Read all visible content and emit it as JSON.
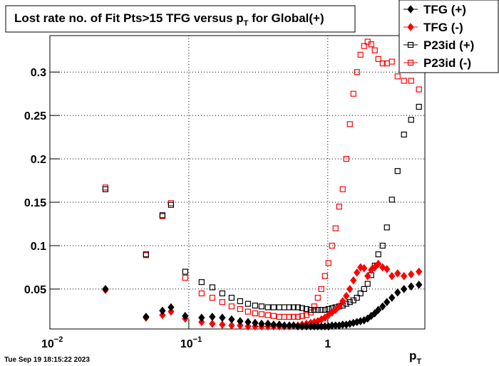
{
  "chart_data": {
    "type": "scatter",
    "title": {
      "main": "Lost rate no. of Fit Pts>15 TFG versus p",
      "sub": "T",
      "tail": " for Global(+)"
    },
    "x_label": {
      "main": "p",
      "sub": "T"
    },
    "timestamp": "Tue Sep 19 18:15:22 2023",
    "log_x": true,
    "grid": true,
    "xlim": [
      0.01,
      5
    ],
    "ylim": [
      0.004,
      0.342
    ],
    "xticks": [
      {
        "value": 0.01,
        "label": "10",
        "exponent": "−2"
      },
      {
        "value": 0.1,
        "label": "10",
        "exponent": "−1"
      },
      1
    ],
    "yticks": [
      0.05,
      0.1,
      0.15,
      0.2,
      0.25,
      0.3
    ],
    "legend": "top-right",
    "x": [
      0.0251,
      0.0492,
      0.0646,
      0.0744,
      0.0942,
      0.1236,
      0.1476,
      0.1742,
      0.2032,
      0.234,
      0.2667,
      0.2999,
      0.3337,
      0.3709,
      0.4077,
      0.448,
      0.4866,
      0.5286,
      0.5675,
      0.6093,
      0.654,
      0.702,
      0.7536,
      0.7993,
      0.8477,
      0.8991,
      0.9539,
      1.012,
      1.073,
      1.138,
      1.208,
      1.281,
      1.359,
      1.442,
      1.53,
      1.622,
      1.721,
      1.826,
      1.937,
      2.055,
      2.179,
      2.312,
      2.483,
      2.665,
      2.895,
      3.182,
      3.537,
      3.981,
      4.532
    ],
    "series": [
      {
        "name": "TFG (+)",
        "color": "#000000",
        "marker": "diamond",
        "values": [
          0.05,
          0.018,
          0.025,
          0.029,
          0.019,
          0.017,
          0.018,
          0.017,
          0.015,
          0.013,
          0.012,
          0.011,
          0.01,
          0.01,
          0.009,
          0.009,
          0.008,
          0.008,
          0.008,
          0.007,
          0.007,
          0.007,
          0.007,
          0.007,
          0.007,
          0.007,
          0.007,
          0.007,
          0.008,
          0.008,
          0.008,
          0.009,
          0.009,
          0.01,
          0.011,
          0.012,
          0.013,
          0.014,
          0.016,
          0.019,
          0.022,
          0.026,
          0.03,
          0.035,
          0.04,
          0.046,
          0.05,
          0.053,
          0.055
        ]
      },
      {
        "name": "TFG (-)",
        "color": "#ff0000",
        "marker": "diamond",
        "values": [
          0.049,
          0.017,
          0.02,
          0.024,
          0.016,
          0.012,
          0.01,
          0.009,
          0.008,
          0.008,
          0.007,
          0.007,
          0.007,
          0.007,
          0.007,
          0.007,
          0.007,
          0.007,
          0.008,
          0.008,
          0.009,
          0.01,
          0.011,
          0.012,
          0.013,
          0.015,
          0.017,
          0.02,
          0.023,
          0.026,
          0.03,
          0.036,
          0.042,
          0.05,
          0.06,
          0.069,
          0.075,
          0.074,
          0.065,
          0.072,
          0.075,
          0.079,
          0.075,
          0.073,
          0.065,
          0.068,
          0.065,
          0.067,
          0.07
        ]
      },
      {
        "name": "P23id (+)",
        "color": "#000000",
        "marker": "open-square",
        "values": [
          0.165,
          0.09,
          0.135,
          0.147,
          0.07,
          0.058,
          0.052,
          0.045,
          0.04,
          0.036,
          0.033,
          0.031,
          0.03,
          0.029,
          0.029,
          0.029,
          0.029,
          0.029,
          0.029,
          0.029,
          0.028,
          0.027,
          0.026,
          0.026,
          0.026,
          0.026,
          0.026,
          0.027,
          0.028,
          0.029,
          0.03,
          0.031,
          0.033,
          0.035,
          0.037,
          0.04,
          0.045,
          0.05,
          0.056,
          0.066,
          0.077,
          0.09,
          0.1,
          0.121,
          0.153,
          0.186,
          0.228,
          0.245,
          0.26
        ]
      },
      {
        "name": "P23id (-)",
        "color": "#ff0000",
        "marker": "open-square",
        "values": [
          0.167,
          0.089,
          0.134,
          0.149,
          0.063,
          0.045,
          0.04,
          0.035,
          0.03,
          0.027,
          0.024,
          0.022,
          0.021,
          0.02,
          0.019,
          0.018,
          0.018,
          0.018,
          0.018,
          0.018,
          0.019,
          0.02,
          0.023,
          0.03,
          0.04,
          0.05,
          0.065,
          0.08,
          0.1,
          0.12,
          0.145,
          0.165,
          0.2,
          0.24,
          0.275,
          0.3,
          0.32,
          0.33,
          0.335,
          0.332,
          0.325,
          0.315,
          0.31,
          0.31,
          0.312,
          0.295,
          0.29,
          0.29,
          0.28
        ]
      }
    ]
  }
}
